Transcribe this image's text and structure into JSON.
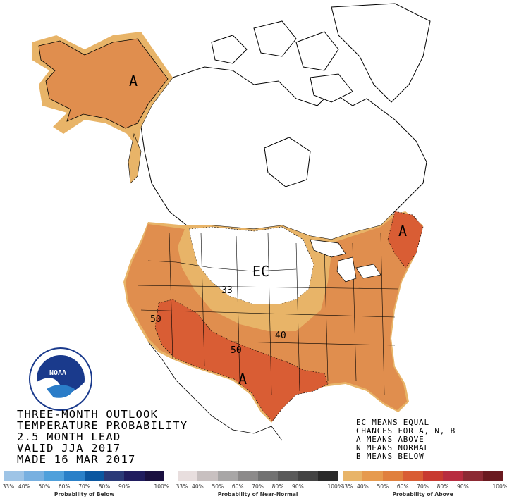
{
  "title_lines": [
    "THREE-MONTH OUTLOOK",
    "TEMPERATURE PROBABILITY",
    "2.5 MONTH LEAD",
    "VALID JJA 2017",
    "MADE 16 MAR 2017"
  ],
  "legend_notes": [
    "EC MEANS EQUAL",
    "CHANCES FOR A, N, B",
    "A MEANS ABOVE",
    "N MEANS NORMAL",
    "B MEANS BELOW"
  ],
  "map_labels": {
    "alaska": "A",
    "east": "A",
    "southwest": "A",
    "ec": "EC",
    "contour_33": "33",
    "contour_40": "40",
    "contour_50_west": "50",
    "contour_50_south": "50"
  },
  "logo": {
    "name": "NOAA",
    "ring_text": "NATIONAL OCEANIC AND ATMOSPHERIC ADMINISTRATION · U.S. DEPARTMENT OF COMMERCE"
  },
  "colors": {
    "above_33": "#e8b468",
    "above_40": "#e08e4e",
    "above_50": "#d95d34",
    "below": [
      "#9ec4e6",
      "#78b0e0",
      "#4fa0db",
      "#2a80c8",
      "#0b57a0",
      "#2b3a78",
      "#201c5e",
      "#1a1040"
    ],
    "near_normal": [
      "#e8dede",
      "#c8c0c0",
      "#a8a6a6",
      "#8c8a8a",
      "#727272",
      "#5a5a5a",
      "#444444",
      "#2a2a2a"
    ],
    "above": [
      "#e8b468",
      "#e69a4e",
      "#e0803e",
      "#d95d34",
      "#c83a30",
      "#b82c40",
      "#8c2a34",
      "#6a1a20"
    ]
  },
  "scales": [
    {
      "name": "below",
      "caption": "Probability of Below",
      "ticks": [
        "33%",
        "40%",
        "50%",
        "60%",
        "70%",
        "80%",
        "90%",
        "100%"
      ]
    },
    {
      "name": "near_normal",
      "caption": "Probability of Near-Normal",
      "ticks": [
        "33%",
        "40%",
        "50%",
        "60%",
        "70%",
        "80%",
        "90%",
        "100%"
      ]
    },
    {
      "name": "above",
      "caption": "Probability of Above",
      "ticks": [
        "33%",
        "40%",
        "50%",
        "60%",
        "70%",
        "80%",
        "90%",
        "100%"
      ]
    }
  ]
}
